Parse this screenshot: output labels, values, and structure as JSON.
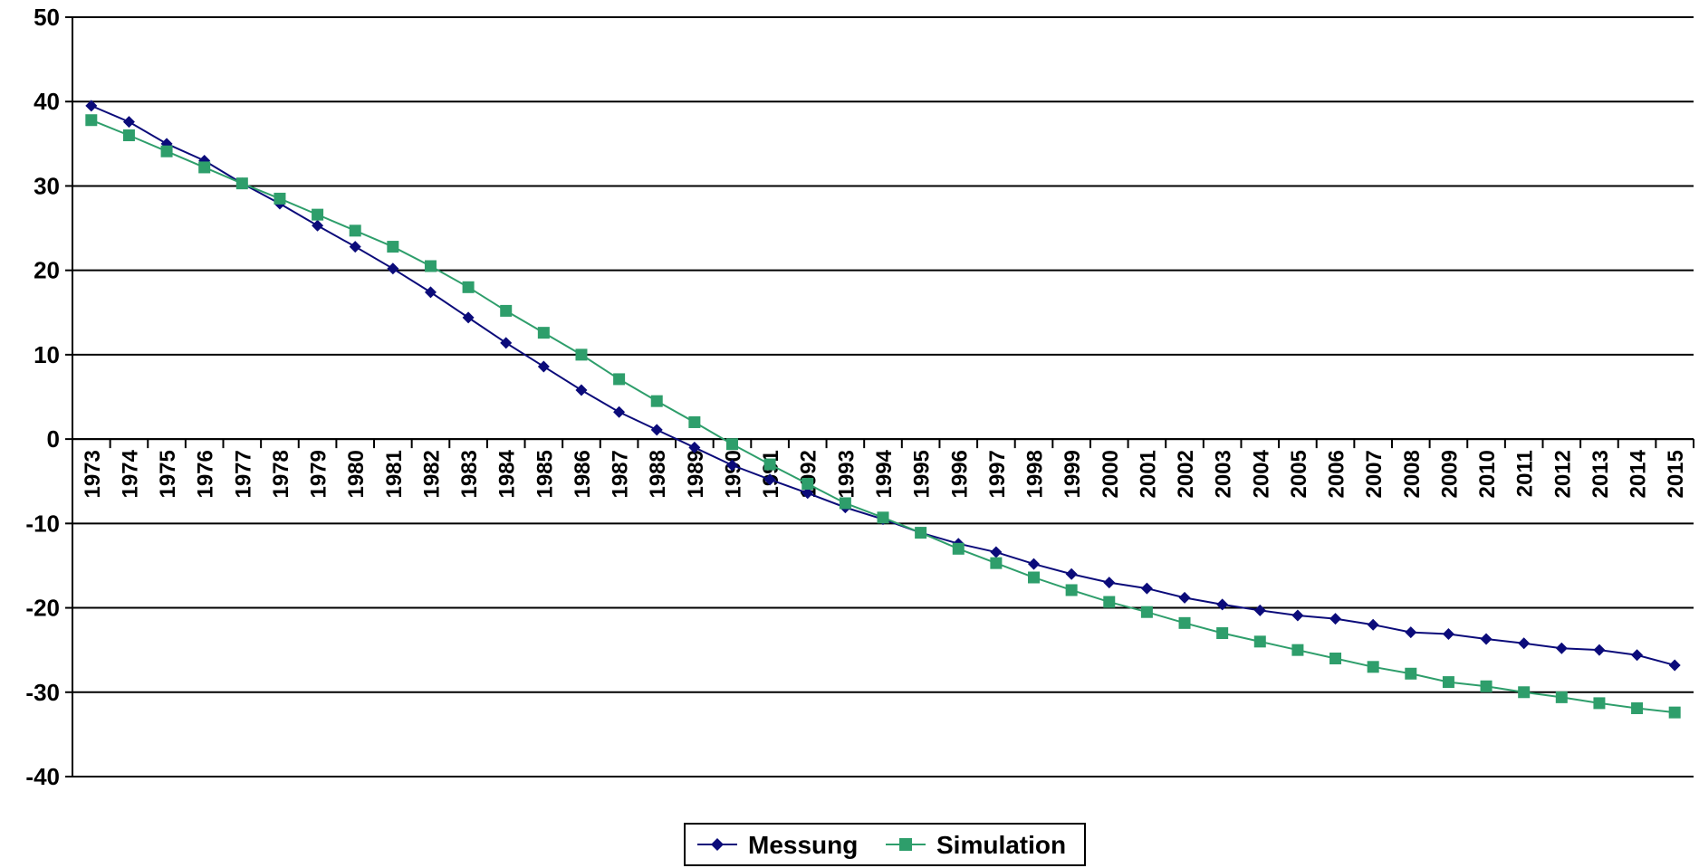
{
  "chart_data": {
    "type": "line",
    "title": "",
    "xlabel": "",
    "ylabel": "",
    "ylim": [
      -40,
      50
    ],
    "ytick_step": 10,
    "grid": "horizontal",
    "legend_position": "bottom-center",
    "categories": [
      "1973",
      "1974",
      "1975",
      "1976",
      "1977",
      "1978",
      "1979",
      "1980",
      "1981",
      "1982",
      "1983",
      "1984",
      "1985",
      "1986",
      "1987",
      "1988",
      "1989",
      "1990",
      "1991",
      "1992",
      "1993",
      "1994",
      "1995",
      "1996",
      "1997",
      "1998",
      "1999",
      "2000",
      "2001",
      "2002",
      "2003",
      "2004",
      "2005",
      "2006",
      "2007",
      "2008",
      "2009",
      "2010",
      "2011",
      "2012",
      "2013",
      "2014",
      "2015"
    ],
    "series": [
      {
        "name": "Messung",
        "color": "#0b0b7a",
        "marker": "diamond",
        "values": [
          39.5,
          37.6,
          35.0,
          33.0,
          30.3,
          27.9,
          25.3,
          22.8,
          20.2,
          17.4,
          14.4,
          11.4,
          8.6,
          5.8,
          3.2,
          1.1,
          -1.0,
          -3.1,
          -4.8,
          -6.4,
          -8.1,
          -9.5,
          -11.1,
          -12.4,
          -13.4,
          -14.8,
          -16.0,
          -17.0,
          -17.7,
          -18.8,
          -19.6,
          -20.3,
          -20.9,
          -21.3,
          -22.0,
          -22.9,
          -23.1,
          -23.7,
          -24.2,
          -24.8,
          -25.0,
          -25.6,
          -26.8
        ]
      },
      {
        "name": "Simulation",
        "color": "#2e9e6b",
        "marker": "square",
        "values": [
          37.8,
          36.0,
          34.1,
          32.2,
          30.3,
          28.5,
          26.6,
          24.7,
          22.8,
          20.5,
          18.0,
          15.2,
          12.6,
          10.0,
          7.1,
          4.5,
          2.0,
          -0.6,
          -3.0,
          -5.3,
          -7.6,
          -9.3,
          -11.1,
          -13.0,
          -14.7,
          -16.4,
          -17.9,
          -19.3,
          -20.5,
          -21.8,
          -23.0,
          -24.0,
          -25.0,
          -26.0,
          -27.0,
          -27.8,
          -28.8,
          -29.3,
          -30.0,
          -30.6,
          -31.3,
          -31.9,
          -32.4
        ]
      }
    ]
  }
}
